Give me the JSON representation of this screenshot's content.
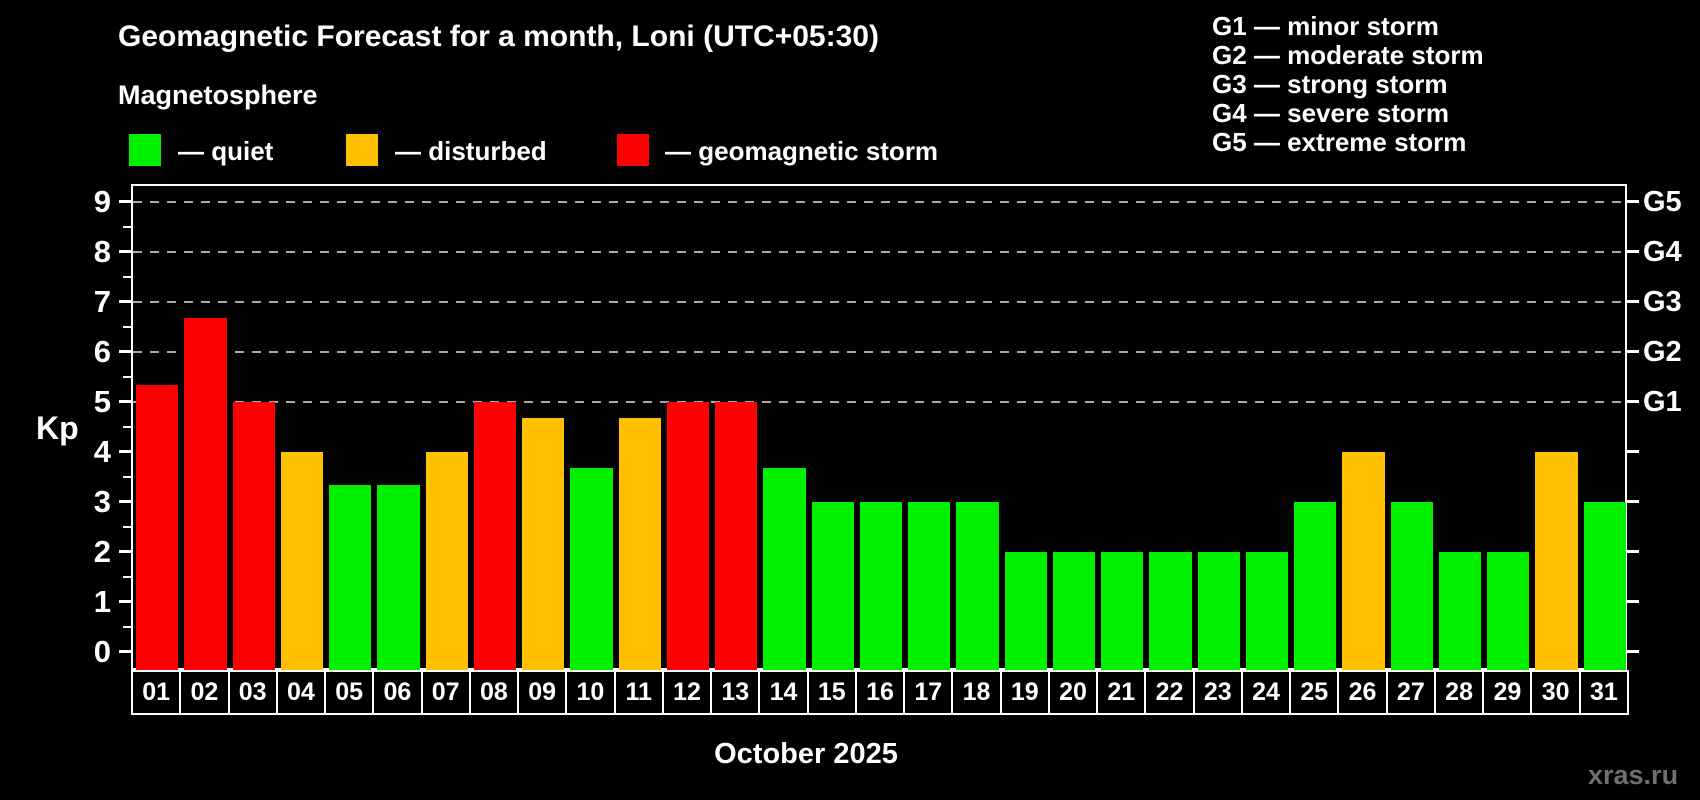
{
  "title": "Geomagnetic Forecast for a month, Loni (UTC+05:30)",
  "subtitle": "Magnetosphere",
  "legend": {
    "items": [
      {
        "name": "quiet",
        "label": "— quiet",
        "color": "#00f000"
      },
      {
        "name": "disturbed",
        "label": "— disturbed",
        "color": "#ffc000"
      },
      {
        "name": "storm",
        "label": "— geomagnetic storm",
        "color": "#ff0000"
      }
    ]
  },
  "g_legend": [
    "G1 — minor storm",
    "G2 — moderate storm",
    "G3 — strong storm",
    "G4 — severe storm",
    "G5 — extreme storm"
  ],
  "watermark": "xras.ru",
  "chart_data": {
    "type": "bar",
    "title": "Geomagnetic Forecast for a month, Loni (UTC+05:30)",
    "xlabel": "October 2025",
    "ylabel": "Kp",
    "ylim": [
      0,
      9
    ],
    "yticks": [
      0,
      1,
      2,
      3,
      4,
      5,
      6,
      7,
      8,
      9
    ],
    "categories": [
      "01",
      "02",
      "03",
      "04",
      "05",
      "06",
      "07",
      "08",
      "09",
      "10",
      "11",
      "12",
      "13",
      "14",
      "15",
      "16",
      "17",
      "18",
      "19",
      "20",
      "21",
      "22",
      "23",
      "24",
      "25",
      "26",
      "27",
      "28",
      "29",
      "30",
      "31"
    ],
    "values": [
      5.33,
      6.67,
      5,
      4,
      3.33,
      3.33,
      4,
      5,
      4.67,
      3.67,
      4.67,
      5,
      5,
      3.67,
      3,
      3,
      3,
      3,
      2,
      2,
      2,
      2,
      2,
      2,
      3,
      4,
      3,
      2,
      2,
      4,
      3
    ],
    "status_colors": {
      "quiet": "#00f000",
      "disturbed": "#ffc000",
      "storm": "#ff0000"
    },
    "thresholds": {
      "disturbed_min": 4,
      "storm_min": 5
    },
    "gridlines_kp": [
      5,
      6,
      7,
      8,
      9
    ],
    "grid_style": "dashed horizontal gray lines at storm levels only",
    "right_axis_labels": [
      {
        "kp": 5,
        "text": "G1"
      },
      {
        "kp": 6,
        "text": "G2"
      },
      {
        "kp": 7,
        "text": "G3"
      },
      {
        "kp": 8,
        "text": "G4"
      },
      {
        "kp": 9,
        "text": "G5"
      }
    ],
    "legend_position": "top-left"
  }
}
